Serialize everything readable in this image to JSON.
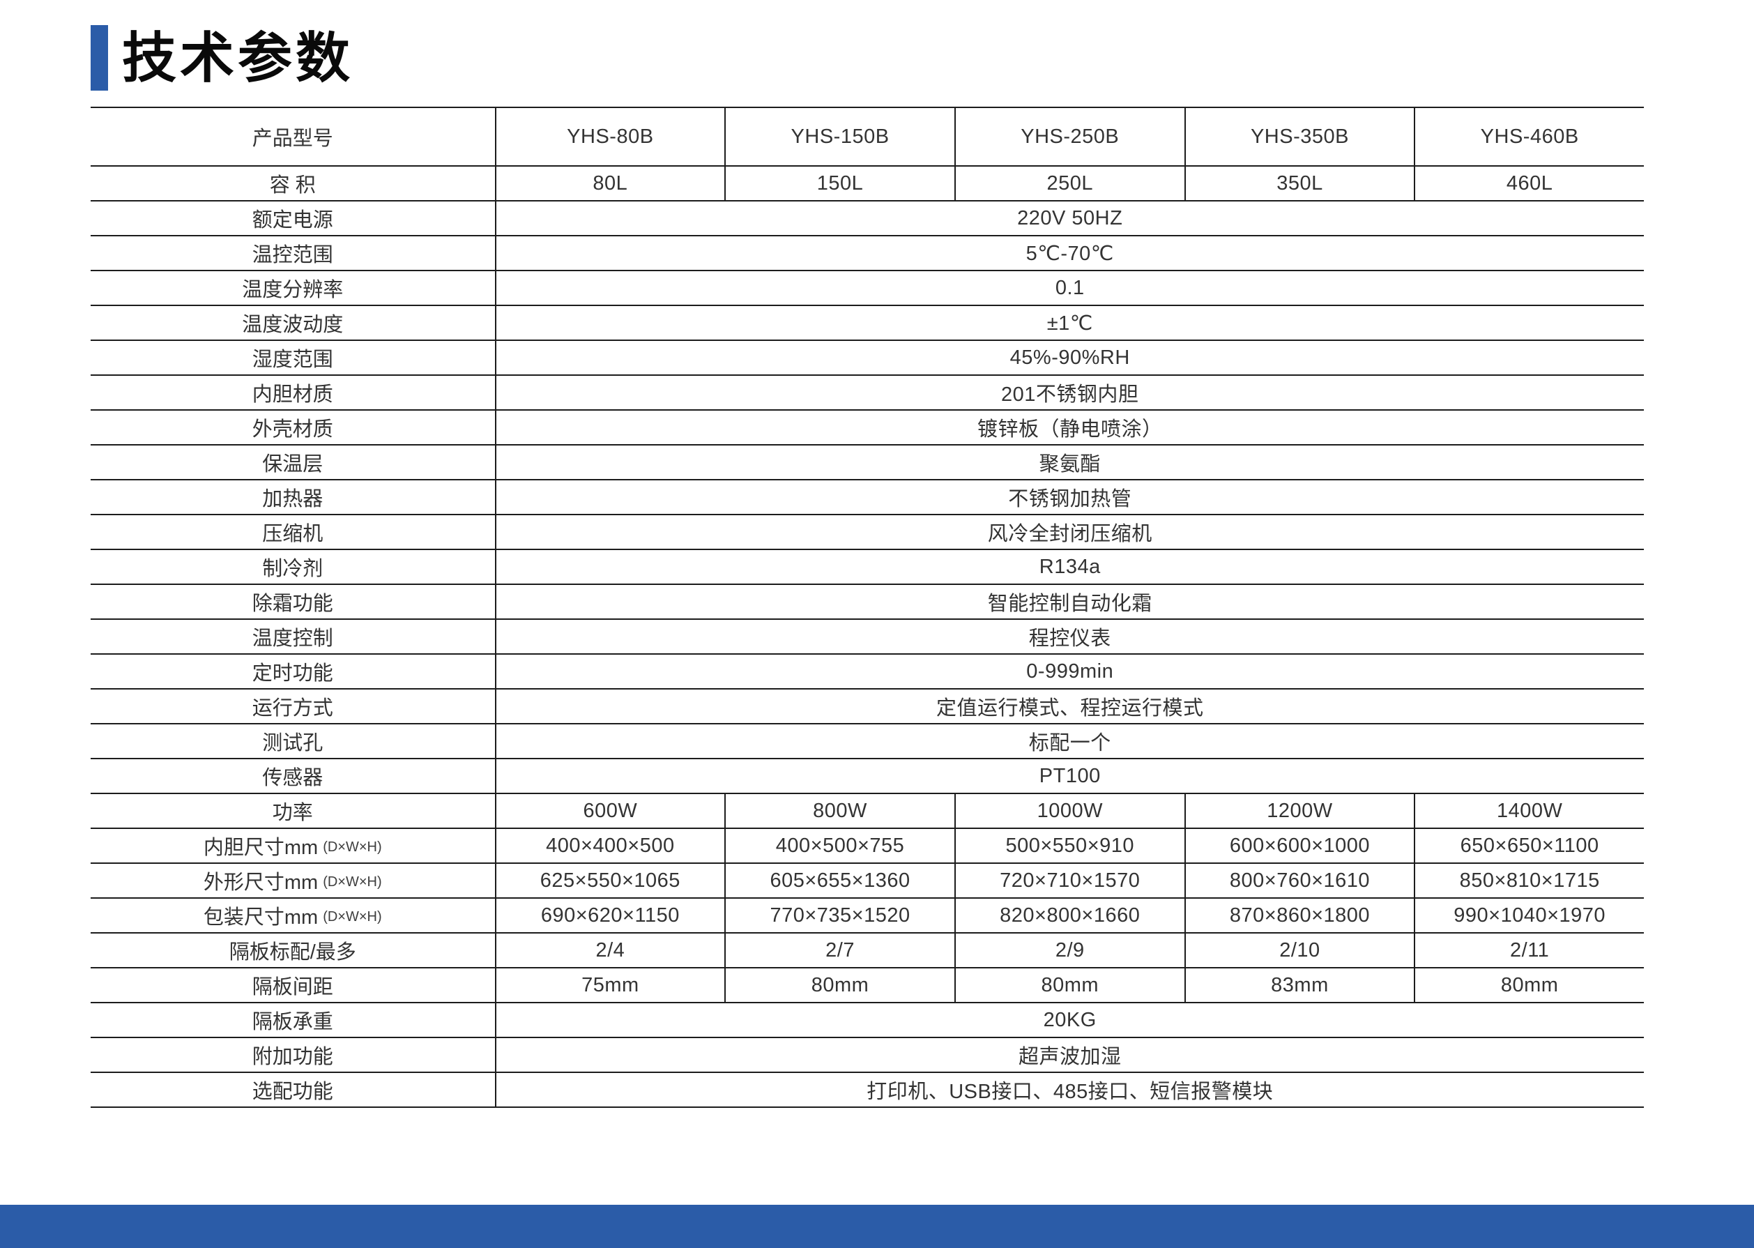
{
  "header": {
    "title": "技术参数"
  },
  "theme": {
    "accent_blue": "#2B5CA8"
  },
  "table": {
    "rows": [
      {
        "header": true,
        "label": "产品型号",
        "values": [
          "YHS-80B",
          "YHS-150B",
          "YHS-250B",
          "YHS-350B",
          "YHS-460B"
        ]
      },
      {
        "label": "容 积",
        "values": [
          "80L",
          "150L",
          "250L",
          "350L",
          "460L"
        ]
      },
      {
        "label": "额定电源",
        "value": "220V 50HZ"
      },
      {
        "label": "温控范围",
        "value": "5℃-70℃"
      },
      {
        "label": "温度分辨率",
        "value": "0.1"
      },
      {
        "label": "温度波动度",
        "value": "±1℃"
      },
      {
        "label": "湿度范围",
        "value": "45%-90%RH"
      },
      {
        "label": "内胆材质",
        "value": "201不锈钢内胆"
      },
      {
        "label": "外壳材质",
        "value": "镀锌板（静电喷涂）"
      },
      {
        "label": "保温层",
        "value": "聚氨酯"
      },
      {
        "label": "加热器",
        "value": "不锈钢加热管"
      },
      {
        "label": "压缩机",
        "value": "风冷全封闭压缩机"
      },
      {
        "label": "制冷剂",
        "value": "R134a"
      },
      {
        "label": "除霜功能",
        "value": "智能控制自动化霜"
      },
      {
        "label": "温度控制",
        "value": "程控仪表"
      },
      {
        "label": "定时功能",
        "value": "0-999min"
      },
      {
        "label": "运行方式",
        "value": "定值运行模式、程控运行模式"
      },
      {
        "label": "测试孔",
        "value": "标配一个"
      },
      {
        "label": "传感器",
        "value": "PT100"
      },
      {
        "label": "功率",
        "values": [
          "600W",
          "800W",
          "1000W",
          "1200W",
          "1400W"
        ]
      },
      {
        "label": "内胆尺寸mm",
        "suffix": "(D×W×H)",
        "values": [
          "400×400×500",
          "400×500×755",
          "500×550×910",
          "600×600×1000",
          "650×650×1100"
        ]
      },
      {
        "label": "外形尺寸mm",
        "suffix": "(D×W×H)",
        "values": [
          "625×550×1065",
          "605×655×1360",
          "720×710×1570",
          "800×760×1610",
          "850×810×1715"
        ]
      },
      {
        "label": "包装尺寸mm",
        "suffix": "(D×W×H)",
        "values": [
          "690×620×1150",
          "770×735×1520",
          "820×800×1660",
          "870×860×1800",
          "990×1040×1970"
        ]
      },
      {
        "label": "隔板标配/最多",
        "values": [
          "2/4",
          "2/7",
          "2/9",
          "2/10",
          "2/11"
        ]
      },
      {
        "label": "隔板间距",
        "values": [
          "75mm",
          "80mm",
          "80mm",
          "83mm",
          "80mm"
        ]
      },
      {
        "label": "隔板承重",
        "value": "20KG"
      },
      {
        "label": "附加功能",
        "value": "超声波加湿"
      },
      {
        "label": "选配功能",
        "value": "打印机、USB接口、485接口、短信报警模块"
      }
    ]
  }
}
